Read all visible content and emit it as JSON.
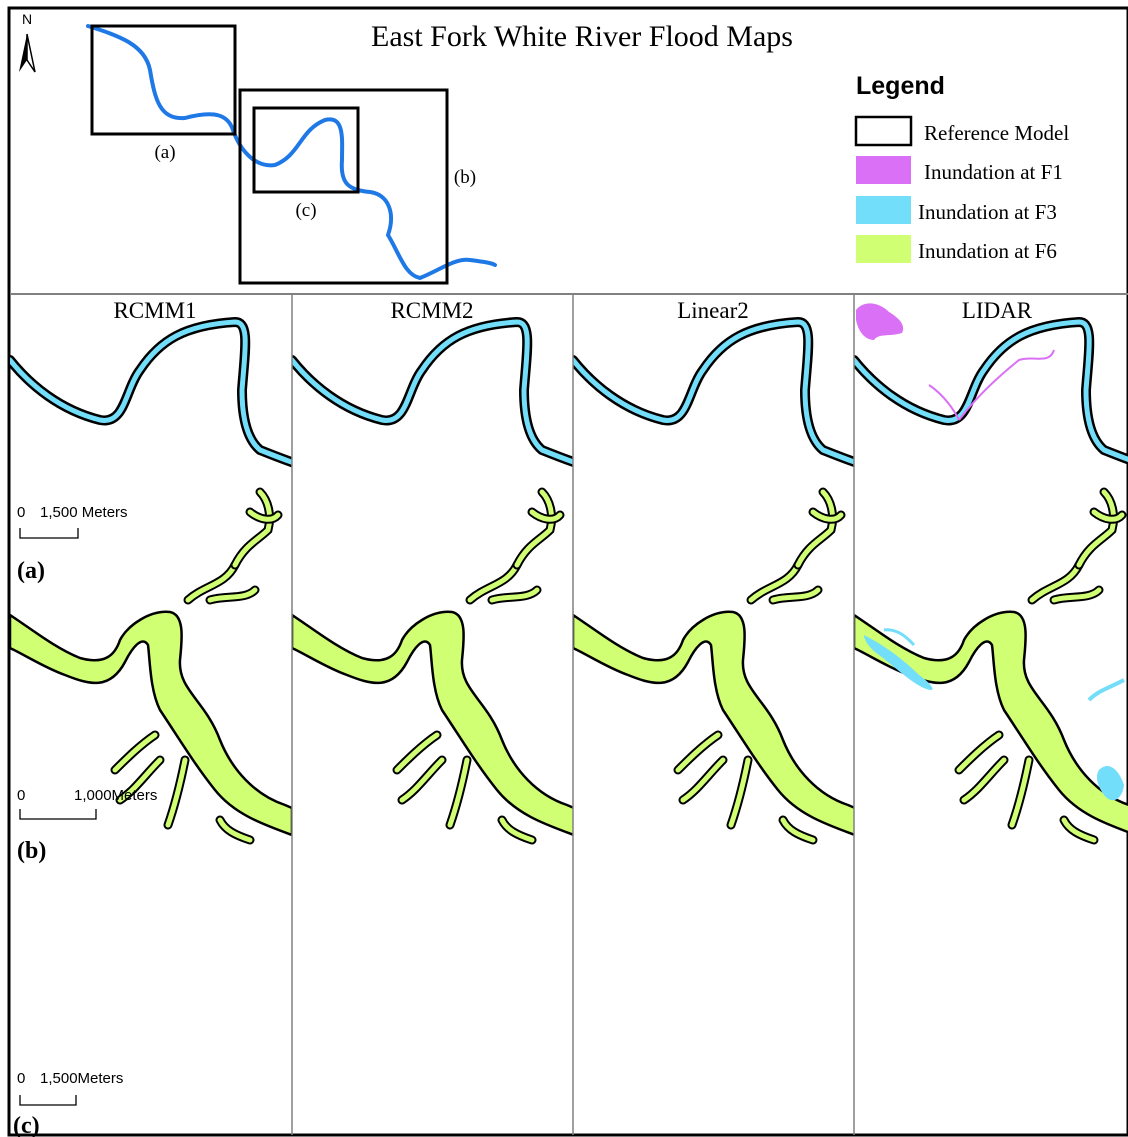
{
  "title": "East Fork White River Flood Maps",
  "north_label": "N",
  "overview": {
    "box_labels": [
      "(a)",
      "(b)",
      "(c)"
    ]
  },
  "legend": {
    "heading": "Legend",
    "items": [
      {
        "label": "Reference Model",
        "swatch": "outline",
        "color": "#000000"
      },
      {
        "label": "Inundation at F1",
        "swatch": "fill",
        "color": "#DA70F5"
      },
      {
        "label": "Inundation at F3",
        "swatch": "fill",
        "color": "#73DEFA"
      },
      {
        "label": "Inundation at F6",
        "swatch": "fill",
        "color": "#D1FF73"
      }
    ]
  },
  "columns": [
    "RCMM1",
    "RCMM2",
    "Linear2",
    "LIDAR"
  ],
  "rows": [
    {
      "label": "(a)",
      "scale_zero": "0",
      "scale_text": "1,500 Meters",
      "color": "#DA70F5"
    },
    {
      "label": "(b)",
      "scale_zero": "0",
      "scale_text": "1,000Meters",
      "color": "#73DEFA"
    },
    {
      "label": "(c)",
      "scale_zero": "0",
      "scale_text": "1,500Meters",
      "color": "#D1FF73"
    }
  ],
  "colors": {
    "river_line": "#1E78E6",
    "reference_outline": "#000000",
    "panel_border": "#808080"
  }
}
